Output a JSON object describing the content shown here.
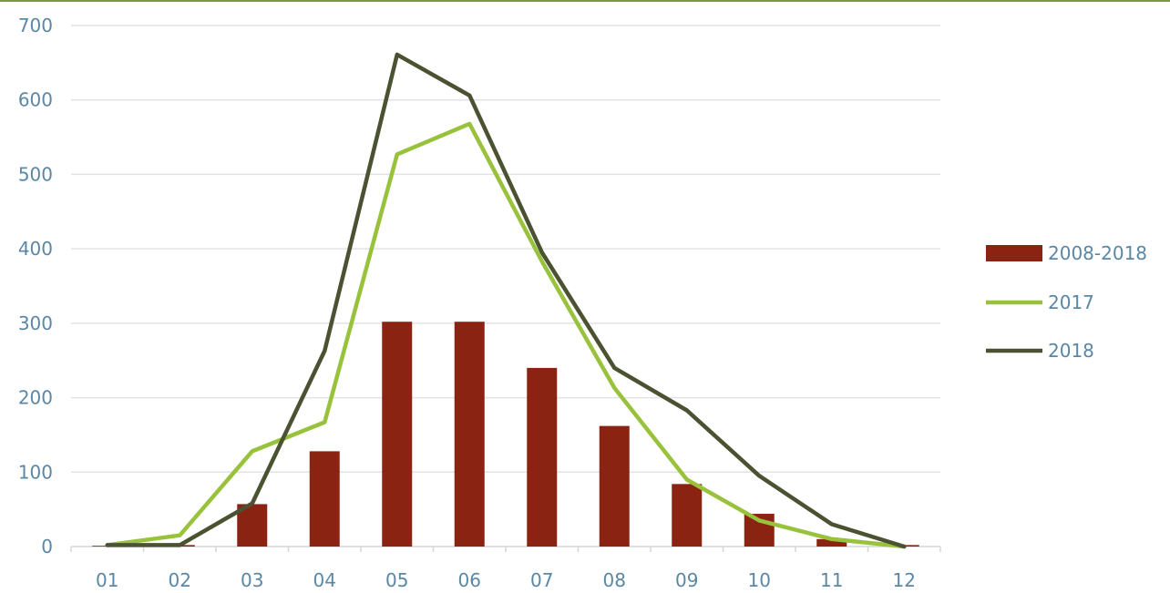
{
  "chart_data": {
    "type": "bar",
    "title": "",
    "xlabel": "",
    "ylabel": "",
    "categories": [
      "01",
      "02",
      "03",
      "04",
      "05",
      "06",
      "07",
      "08",
      "09",
      "10",
      "11",
      "12"
    ],
    "ylim": [
      0,
      700
    ],
    "yticks": [
      "0",
      "100",
      "200",
      "300",
      "400",
      "500",
      "600",
      "700"
    ],
    "grid": true,
    "legend_position": "right",
    "series": [
      {
        "name": "2008-2018",
        "type": "bar",
        "color": "#8b2312",
        "values": [
          1,
          2,
          57,
          128,
          302,
          302,
          240,
          162,
          84,
          44,
          10,
          2
        ]
      },
      {
        "name": "2017",
        "type": "line",
        "color": "#99c23c",
        "values": [
          2,
          15,
          128,
          167,
          527,
          568,
          383,
          213,
          90,
          35,
          10,
          0
        ]
      },
      {
        "name": "2018",
        "type": "line",
        "color": "#4a5232",
        "values": [
          2,
          2,
          58,
          263,
          661,
          606,
          395,
          240,
          183,
          95,
          30,
          0
        ]
      }
    ]
  }
}
